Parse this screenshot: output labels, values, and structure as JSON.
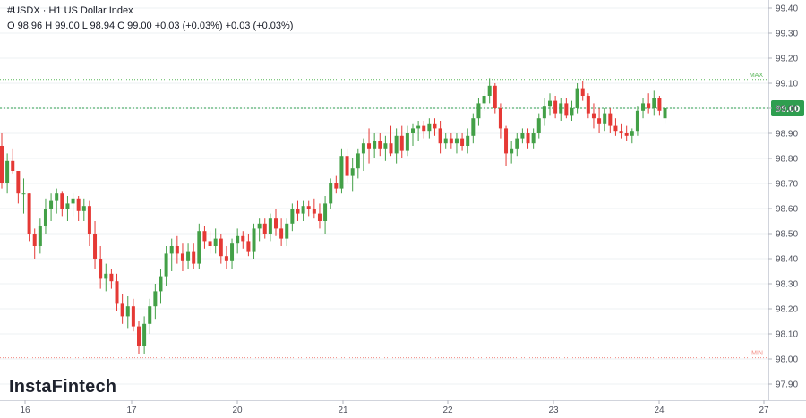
{
  "header": {
    "title": "#USDX · H1 US Dollar Index",
    "ohlc": "O 98.96 H 99.00 L 98.94 C 99.00 +0.03 (+0.03%) +0.03 (+0.03%)"
  },
  "brand": "InstaFintech",
  "colors": {
    "up": "#26a69a",
    "up_candle": "#43a047",
    "down": "#e53935",
    "grid": "#eef0f3",
    "axis_text": "#50535e",
    "current_badge": "#2e9e4f",
    "max_line": "#5cb85c",
    "min_line": "#f28b82"
  },
  "chart_data": {
    "type": "candlestick",
    "symbol": "#USDX",
    "timeframe": "H1",
    "ylim": [
      97.87,
      99.45
    ],
    "y_ticks": [
      "99.40",
      "99.30",
      "99.20",
      "99.10",
      "99.00",
      "98.90",
      "98.80",
      "98.70",
      "98.60",
      "98.50",
      "98.40",
      "98.30",
      "98.20",
      "98.10",
      "98.00",
      "97.90"
    ],
    "x_ticks": [
      "16",
      "17",
      "20",
      "21",
      "22",
      "23",
      "24",
      "27"
    ],
    "current_price": "99.00",
    "max_label": "MAX",
    "min_label": "MIN",
    "max_value": 99.115,
    "min_value": 98.005,
    "candles": [
      [
        98.85,
        98.9,
        98.68,
        98.7
      ],
      [
        98.7,
        98.82,
        98.66,
        98.79
      ],
      [
        98.79,
        98.84,
        98.74,
        98.75
      ],
      [
        98.75,
        98.75,
        98.62,
        98.66
      ],
      [
        98.66,
        98.72,
        98.58,
        98.66
      ],
      [
        98.66,
        98.66,
        98.47,
        98.5
      ],
      [
        98.5,
        98.52,
        98.4,
        98.45
      ],
      [
        98.45,
        98.56,
        98.42,
        98.53
      ],
      [
        98.53,
        98.64,
        98.5,
        98.6
      ],
      [
        98.6,
        98.66,
        98.55,
        98.63
      ],
      [
        98.63,
        98.68,
        98.58,
        98.66
      ],
      [
        98.66,
        98.67,
        98.57,
        98.6
      ],
      [
        98.6,
        98.65,
        98.55,
        98.62
      ],
      [
        98.62,
        98.66,
        98.57,
        98.64
      ],
      [
        98.64,
        98.65,
        98.55,
        98.59
      ],
      [
        98.59,
        98.64,
        98.55,
        98.61
      ],
      [
        98.61,
        98.63,
        98.45,
        98.5
      ],
      [
        98.5,
        98.55,
        98.36,
        98.4
      ],
      [
        98.4,
        98.45,
        98.28,
        98.32
      ],
      [
        98.32,
        98.38,
        98.27,
        98.34
      ],
      [
        98.34,
        98.36,
        98.28,
        98.31
      ],
      [
        98.31,
        98.34,
        98.19,
        98.22
      ],
      [
        98.22,
        98.26,
        98.14,
        98.17
      ],
      [
        98.17,
        98.25,
        98.12,
        98.21
      ],
      [
        98.21,
        98.24,
        98.11,
        98.13
      ],
      [
        98.13,
        98.15,
        98.02,
        98.05
      ],
      [
        98.05,
        98.17,
        98.02,
        98.14
      ],
      [
        98.14,
        98.24,
        98.1,
        98.21
      ],
      [
        98.21,
        98.3,
        98.16,
        98.27
      ],
      [
        98.27,
        98.36,
        98.22,
        98.33
      ],
      [
        98.33,
        98.45,
        98.29,
        98.42
      ],
      [
        98.42,
        98.48,
        98.35,
        98.45
      ],
      [
        98.45,
        98.49,
        98.38,
        98.42
      ],
      [
        98.42,
        98.46,
        98.35,
        98.39
      ],
      [
        98.39,
        98.46,
        98.36,
        98.43
      ],
      [
        98.43,
        98.46,
        98.36,
        98.38
      ],
      [
        98.38,
        98.54,
        98.36,
        98.51
      ],
      [
        98.51,
        98.53,
        98.44,
        98.47
      ],
      [
        98.47,
        98.51,
        98.42,
        98.45
      ],
      [
        98.45,
        98.52,
        98.42,
        98.48
      ],
      [
        98.48,
        98.5,
        98.38,
        98.41
      ],
      [
        98.41,
        98.45,
        98.36,
        98.39
      ],
      [
        98.39,
        98.48,
        98.36,
        98.46
      ],
      [
        98.46,
        98.52,
        98.42,
        98.49
      ],
      [
        98.49,
        98.51,
        98.44,
        98.47
      ],
      [
        98.47,
        98.5,
        98.41,
        98.43
      ],
      [
        98.43,
        98.54,
        98.4,
        98.52
      ],
      [
        98.52,
        98.56,
        98.47,
        98.54
      ],
      [
        98.54,
        98.56,
        98.48,
        98.5
      ],
      [
        98.5,
        98.58,
        98.47,
        98.56
      ],
      [
        98.56,
        98.6,
        98.49,
        98.52
      ],
      [
        98.52,
        98.56,
        98.45,
        98.48
      ],
      [
        98.48,
        98.56,
        98.45,
        98.54
      ],
      [
        98.54,
        98.62,
        98.51,
        98.6
      ],
      [
        98.6,
        98.63,
        98.55,
        98.58
      ],
      [
        98.58,
        98.63,
        98.55,
        98.61
      ],
      [
        98.61,
        98.63,
        98.57,
        98.6
      ],
      [
        98.6,
        98.64,
        98.56,
        98.58
      ],
      [
        98.58,
        98.62,
        98.52,
        98.55
      ],
      [
        98.55,
        98.65,
        98.5,
        98.62
      ],
      [
        98.62,
        98.72,
        98.6,
        98.7
      ],
      [
        98.7,
        98.73,
        98.66,
        98.68
      ],
      [
        98.68,
        98.84,
        98.66,
        98.81
      ],
      [
        98.81,
        98.84,
        98.7,
        98.73
      ],
      [
        98.73,
        98.8,
        98.67,
        98.76
      ],
      [
        98.76,
        98.84,
        98.72,
        98.82
      ],
      [
        98.82,
        98.88,
        98.75,
        98.86
      ],
      [
        98.86,
        98.92,
        98.78,
        98.84
      ],
      [
        98.84,
        98.9,
        98.8,
        98.87
      ],
      [
        98.87,
        98.9,
        98.81,
        98.84
      ],
      [
        98.84,
        98.89,
        98.79,
        98.86
      ],
      [
        98.86,
        98.93,
        98.81,
        98.82
      ],
      [
        98.82,
        98.92,
        98.78,
        98.89
      ],
      [
        98.89,
        98.93,
        98.8,
        98.83
      ],
      [
        98.83,
        98.93,
        98.81,
        98.9
      ],
      [
        98.9,
        98.94,
        98.85,
        98.92
      ],
      [
        98.92,
        98.95,
        98.87,
        98.93
      ],
      [
        98.93,
        98.95,
        98.88,
        98.91
      ],
      [
        98.91,
        98.96,
        98.88,
        98.94
      ],
      [
        98.94,
        98.96,
        98.89,
        98.92
      ],
      [
        98.92,
        98.95,
        98.82,
        98.86
      ],
      [
        98.86,
        98.9,
        98.84,
        98.88
      ],
      [
        98.88,
        98.9,
        98.84,
        98.86
      ],
      [
        98.86,
        98.9,
        98.82,
        98.88
      ],
      [
        98.88,
        98.9,
        98.83,
        98.85
      ],
      [
        98.85,
        98.92,
        98.82,
        98.89
      ],
      [
        98.89,
        98.98,
        98.86,
        98.96
      ],
      [
        98.96,
        99.04,
        98.93,
        99.02
      ],
      [
        99.02,
        99.08,
        98.99,
        99.05
      ],
      [
        99.05,
        99.12,
        99.02,
        99.09
      ],
      [
        99.09,
        99.1,
        98.98,
        99.0
      ],
      [
        99.0,
        99.02,
        98.88,
        98.92
      ],
      [
        98.92,
        98.93,
        98.77,
        98.82
      ],
      [
        98.82,
        98.87,
        98.78,
        98.84
      ],
      [
        98.84,
        98.9,
        98.81,
        98.88
      ],
      [
        98.88,
        98.92,
        98.86,
        98.9
      ],
      [
        98.9,
        98.92,
        98.84,
        98.86
      ],
      [
        98.86,
        98.92,
        98.84,
        98.9
      ],
      [
        98.9,
        98.98,
        98.88,
        98.96
      ],
      [
        98.96,
        99.04,
        98.93,
        99.01
      ],
      [
        99.01,
        99.06,
        98.97,
        99.03
      ],
      [
        99.03,
        99.05,
        98.96,
        98.98
      ],
      [
        98.98,
        99.04,
        98.95,
        99.02
      ],
      [
        99.02,
        99.04,
        98.96,
        98.97
      ],
      [
        98.97,
        99.03,
        98.95,
        99.0
      ],
      [
        99.0,
        99.1,
        98.98,
        99.08
      ],
      [
        99.08,
        99.11,
        99.03,
        99.05
      ],
      [
        99.05,
        99.06,
        98.96,
        98.98
      ],
      [
        98.98,
        99.02,
        98.92,
        98.96
      ],
      [
        98.96,
        99.0,
        98.9,
        98.94
      ],
      [
        98.94,
        99.0,
        98.91,
        98.98
      ],
      [
        98.98,
        99.0,
        98.9,
        98.93
      ],
      [
        98.93,
        98.96,
        98.89,
        98.91
      ],
      [
        98.91,
        98.94,
        98.88,
        98.9
      ],
      [
        98.9,
        98.93,
        98.87,
        98.89
      ],
      [
        98.89,
        98.92,
        98.86,
        98.91
      ],
      [
        98.91,
        99.01,
        98.89,
        98.99
      ],
      [
        98.99,
        99.04,
        98.96,
        99.02
      ],
      [
        99.02,
        99.06,
        98.98,
        99.0
      ],
      [
        99.0,
        99.07,
        98.97,
        99.04
      ],
      [
        99.04,
        99.05,
        98.97,
        98.99
      ],
      [
        98.96,
        99.0,
        98.94,
        99.0
      ]
    ]
  }
}
